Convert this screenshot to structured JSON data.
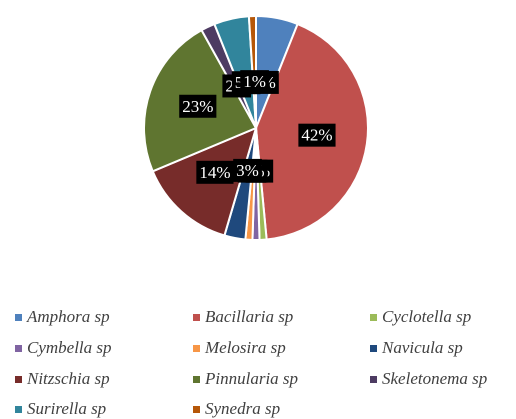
{
  "chart_data": {
    "type": "pie",
    "categories": [
      "Amphora sp",
      "Bacillaria sp",
      "Cyclotella sp",
      "Cymbella sp",
      "Melosira sp",
      "Navicula sp",
      "Nitzschia sp",
      "Pinnularia sp",
      "Skeletonema sp",
      "Surirella sp",
      "Synedra sp"
    ],
    "values": [
      6,
      42,
      1,
      1,
      1,
      3,
      14,
      23,
      2,
      5,
      1
    ],
    "value_labels": [
      "6%",
      "42%",
      "1%",
      "%",
      "_%",
      "3%",
      "14%",
      "23%",
      "2%",
      "5%",
      "1%"
    ],
    "colors": [
      "#4f81bd",
      "#c0504d",
      "#9bbb59",
      "#8064a2",
      "#f79646",
      "#1f497d",
      "#772c2a",
      "#5f7530",
      "#4d3b62",
      "#31859c",
      "#b65708"
    ],
    "legend": "bottom"
  }
}
